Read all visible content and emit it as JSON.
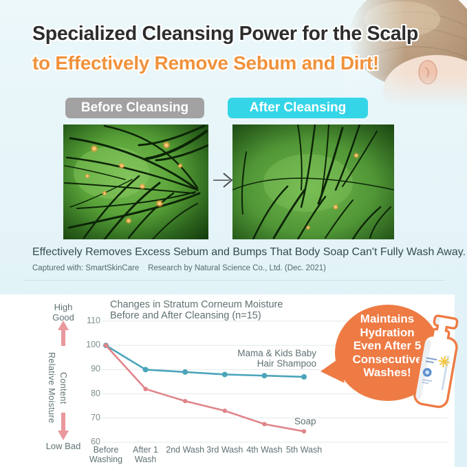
{
  "header": {
    "title_line1": "Specialized Cleansing Power for the Scalp",
    "title_line2": "to Effectively Remove Sebum and Dirt!",
    "title_color": "#2d2d2d",
    "accent_color": "#f0923c"
  },
  "comparison": {
    "before_label": "Before Cleansing",
    "after_label": "After Cleansing",
    "before_bg": "#a2a2a2",
    "after_bg": "#35d5e8",
    "arrow_icon": "right-arrow-icon"
  },
  "caption": {
    "main": "Effectively Removes Excess Sebum and Bumps That Body Soap Can't Fully Wash Away.",
    "sub": "Captured with: SmartSkinCare    Research by Natural Science Co., Ltd. (Dec. 2021)"
  },
  "chart_data": {
    "type": "line",
    "title": "Changes in Stratum Corneum Moisture Before and After Cleansing (n=15)",
    "categories": [
      "Before Washing",
      "After 1 Wash",
      "2nd Wash",
      "3rd Wash",
      "4th Wash",
      "5th Wash"
    ],
    "series": [
      {
        "name": "Mama & Kids Baby Hair Shampoo",
        "color": "#4ba4ba",
        "values": [
          100,
          90,
          89,
          88,
          87.5,
          87
        ]
      },
      {
        "name": "Soap",
        "color": "#e08489",
        "values": [
          100,
          82,
          77,
          73,
          67.5,
          64.5
        ]
      }
    ],
    "ylabel": "Relative Moisture Content",
    "ylim": [
      60,
      110
    ],
    "yticks": [
      110,
      100,
      90,
      80,
      70,
      60
    ],
    "y_direction_labels": {
      "high": "High Good",
      "low": "Low Bad"
    },
    "grid": true,
    "legend_position": "inline-right",
    "arrow_color": "#e9989d",
    "grid_color": "#e2eaea"
  },
  "bubble": {
    "lines": [
      "Maintains",
      "Hydration",
      "Even After 5",
      "Consecutive",
      "Washes!"
    ],
    "bg": "#ee7b44"
  }
}
